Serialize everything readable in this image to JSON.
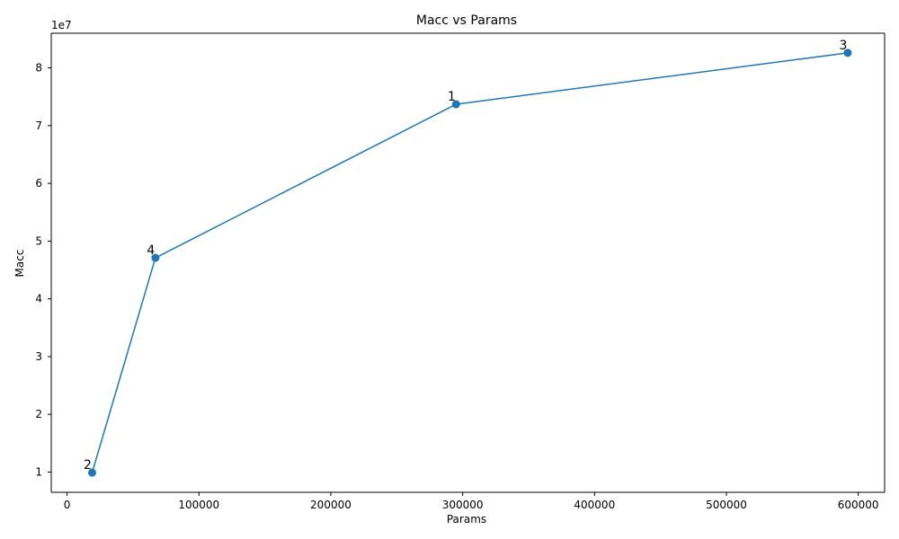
{
  "chart_data": {
    "type": "line",
    "title": "Macc vs Params",
    "xlabel": "Params",
    "ylabel": "Macc",
    "y_offset_label": "1e7",
    "xlim": [
      -12000,
      620000
    ],
    "ylim": [
      6500000,
      86000000
    ],
    "x_ticks": [
      0,
      100000,
      200000,
      300000,
      400000,
      500000,
      600000
    ],
    "x_tick_labels": [
      "0",
      "100000",
      "200000",
      "300000",
      "400000",
      "500000",
      "600000"
    ],
    "y_ticks": [
      10000000,
      20000000,
      30000000,
      40000000,
      50000000,
      60000000,
      70000000,
      80000000
    ],
    "y_tick_labels": [
      "1",
      "2",
      "3",
      "4",
      "5",
      "6",
      "7",
      "8"
    ],
    "grid": false,
    "series": [
      {
        "color": "#1f77b4",
        "marker": "circle",
        "points": [
          {
            "x": 19000,
            "y": 9900000,
            "label": "2"
          },
          {
            "x": 67000,
            "y": 47100000,
            "label": "4"
          },
          {
            "x": 295000,
            "y": 73700000,
            "label": "1"
          },
          {
            "x": 592000,
            "y": 82600000,
            "label": "3"
          }
        ]
      }
    ]
  }
}
